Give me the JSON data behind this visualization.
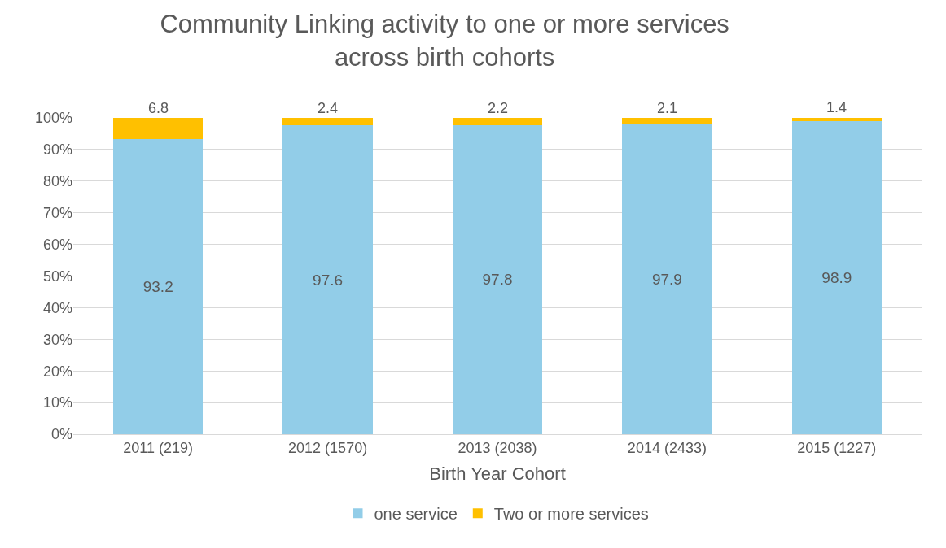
{
  "chart_data": {
    "type": "bar",
    "title": "Community Linking activity to one or more services\nacross birth cohorts",
    "xlabel": "Birth Year Cohort",
    "categories": [
      "2011 (219)",
      "2012 (1570)",
      "2013 (2038)",
      "2014 (2433)",
      "2015 (1227)"
    ],
    "series": [
      {
        "name": "one service",
        "color": "#92cde8",
        "values": [
          93.2,
          97.6,
          97.8,
          97.9,
          98.9
        ]
      },
      {
        "name": "Two or more services",
        "color": "#ffc000",
        "values": [
          6.8,
          2.4,
          2.2,
          2.1,
          1.4
        ]
      }
    ],
    "stacked": true,
    "data_labels": true,
    "grid": "y",
    "legend": "bottom",
    "ylim": [
      0,
      100
    ],
    "yticks": [
      {
        "value": 0,
        "label": "0%"
      },
      {
        "value": 10,
        "label": "10%"
      },
      {
        "value": 20,
        "label": "20%"
      },
      {
        "value": 30,
        "label": "30%"
      },
      {
        "value": 40,
        "label": "40%"
      },
      {
        "value": 50,
        "label": "50%"
      },
      {
        "value": 60,
        "label": "60%"
      },
      {
        "value": 70,
        "label": "70%"
      },
      {
        "value": 80,
        "label": "80%"
      },
      {
        "value": 90,
        "label": "90%"
      },
      {
        "value": 100,
        "label": "100%"
      }
    ]
  }
}
